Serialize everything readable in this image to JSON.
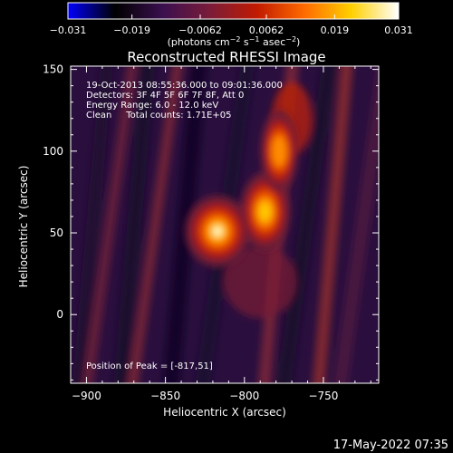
{
  "chart_data": {
    "type": "heatmap",
    "title": "Reconstructed RHESSI Image",
    "xlabel": "Heliocentric X (arcsec)",
    "ylabel": "Heliocentric Y (arcsec)",
    "xlim": [
      -910,
      -715
    ],
    "ylim": [
      -42,
      152
    ],
    "xticks": [
      -900,
      -850,
      -800,
      -750
    ],
    "yticks": [
      0,
      50,
      100,
      150
    ],
    "colorbar": {
      "range": [
        -0.031,
        0.031
      ],
      "ticks": [
        -0.031,
        -0.019,
        -0.0062,
        0.0062,
        0.019,
        0.031
      ],
      "tick_labels": [
        "−0.031",
        "−0.019",
        "−0.0062",
        "0.0062",
        "0.019",
        "0.031"
      ],
      "unit_prefix": "(photons cm",
      "unit_exp1": "−2",
      "unit_mid": " s",
      "unit_exp2": "−1",
      "unit_mid2": " asec",
      "unit_exp3": "−2",
      "unit_suffix": ")",
      "colors": [
        "#0000ff",
        "#000000",
        "#3a0f4e",
        "#7a1c3a",
        "#c11b00",
        "#ff6a00",
        "#ffd000",
        "#ffffff"
      ]
    },
    "info_lines": [
      "19-Oct-2013 08:55:36.000 to 09:01:36.000",
      "Detectors: 3F 4F 5F 6F 7F 8F, Att 0",
      "Energy Range: 6.0 - 12.0 keV",
      "Clean     Total counts: 1.71E+05"
    ],
    "peak_label": "Position of Peak = [-817,51]",
    "sources": [
      {
        "x": -817,
        "y": 51,
        "peak": 0.031
      },
      {
        "x": -787,
        "y": 63,
        "peak": 0.022
      },
      {
        "x": -778,
        "y": 100,
        "peak": 0.015
      }
    ]
  },
  "footer": {
    "timestamp": "17-May-2022 07:35"
  }
}
